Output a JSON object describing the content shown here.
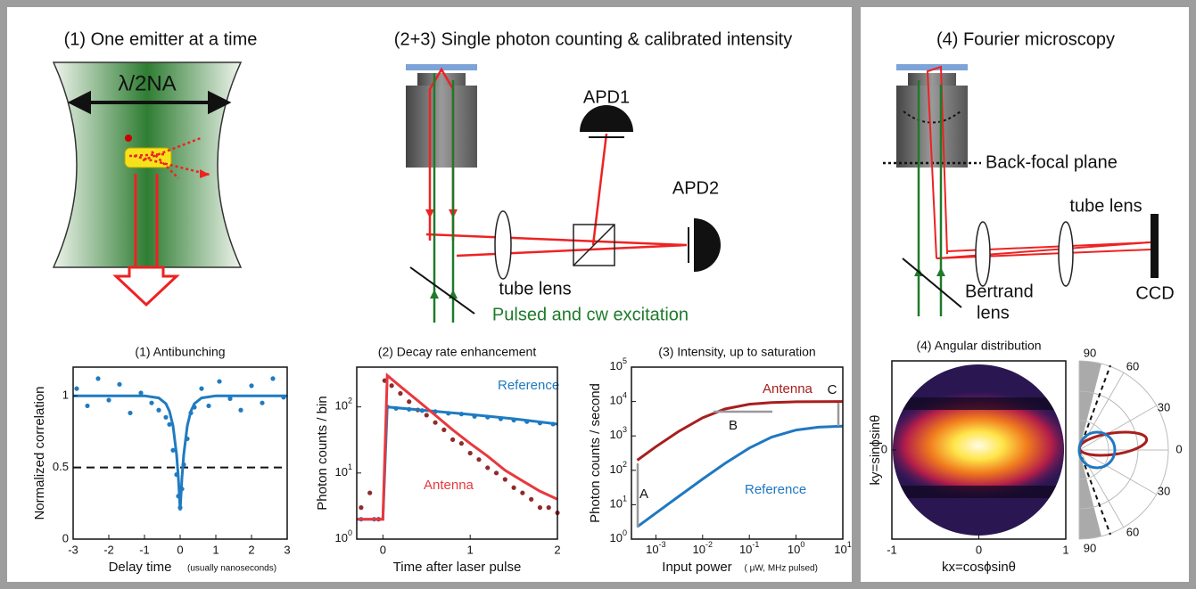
{
  "panels": {
    "emitter": {
      "title": "(1) One emitter at a time",
      "resolution": "λ/2NA"
    },
    "counting": {
      "title": "(2+3) Single photon counting & calibrated intensity",
      "apd1": "APD1",
      "apd2": "APD2",
      "tube_lens": "tube lens",
      "excitation": "Pulsed and cw excitation"
    },
    "fourier": {
      "title": "(4) Fourier microscopy",
      "back_focal": "Back-focal plane",
      "tube_lens": "tube lens",
      "bertrand_lens": [
        "Bertrand",
        "lens"
      ],
      "ccd": "CCD"
    }
  },
  "chart_data": [
    {
      "type": "line",
      "title": "(1) Antibunching",
      "xlabel": "Delay time",
      "xlabel_note": "(usually nanoseconds)",
      "ylabel": "Normalized correlation",
      "xlim": [
        -3,
        3
      ],
      "ylim": [
        0,
        1.2
      ],
      "xticks": [
        -3,
        -2,
        -1,
        0,
        1,
        2,
        3
      ],
      "yticks": [
        0,
        0.5,
        1
      ],
      "hlines": [
        0.5
      ],
      "series": [
        {
          "mode": "markers",
          "color": "#1f7bc1",
          "x": [
            -2.9,
            -2.6,
            -2.3,
            -2.0,
            -1.7,
            -1.4,
            -1.1,
            -0.8,
            -0.6,
            -0.4,
            -0.3,
            -0.2,
            -0.1,
            -0.05,
            0,
            0.05,
            0.1,
            0.2,
            0.3,
            0.4,
            0.6,
            0.8,
            1.1,
            1.4,
            1.7,
            2.0,
            2.3,
            2.6,
            2.9
          ],
          "values": [
            1.05,
            0.93,
            1.12,
            0.97,
            1.08,
            0.88,
            1.02,
            0.95,
            0.9,
            0.85,
            0.8,
            0.62,
            0.45,
            0.3,
            0.22,
            0.35,
            0.52,
            0.7,
            0.88,
            0.92,
            1.05,
            0.93,
            1.1,
            0.98,
            0.9,
            1.07,
            0.95,
            1.12,
            0.99
          ]
        },
        {
          "mode": "line",
          "color": "#1f7bc1",
          "x": [
            -3,
            -2,
            -1,
            -0.6,
            -0.4,
            -0.3,
            -0.2,
            -0.1,
            -0.05,
            0,
            0.05,
            0.1,
            0.2,
            0.3,
            0.4,
            0.6,
            1,
            2,
            3
          ],
          "values": [
            1,
            1,
            1,
            0.985,
            0.945,
            0.892,
            0.79,
            0.589,
            0.427,
            0.2,
            0.427,
            0.589,
            0.79,
            0.892,
            0.945,
            0.985,
            1,
            1,
            1
          ]
        }
      ]
    },
    {
      "type": "line",
      "title": "(2) Decay rate enhancement",
      "xlabel": "Time after laser pulse",
      "ylabel": "Photon counts / bin",
      "log_y": true,
      "xlim": [
        -0.3,
        2
      ],
      "ylim": [
        1,
        400
      ],
      "xticks": [
        0,
        1,
        2
      ],
      "yticks": [
        {
          "value": 1,
          "label": "10^0"
        },
        {
          "value": 10,
          "label": "10^1"
        },
        {
          "value": 100,
          "label": "10^2"
        }
      ],
      "series": [
        {
          "mode": "markers",
          "color": "#8e2b2b",
          "x": [
            -0.25,
            -0.15,
            -0.05,
            0.02,
            0.1,
            0.2,
            0.3,
            0.4,
            0.5,
            0.6,
            0.7,
            0.8,
            0.9,
            1.0,
            1.1,
            1.2,
            1.3,
            1.4,
            1.5,
            1.6,
            1.7,
            1.8,
            1.9,
            2.0
          ],
          "values": [
            3,
            5,
            2,
            250,
            210,
            160,
            120,
            90,
            75,
            58,
            45,
            32,
            28,
            20,
            16,
            12,
            10,
            8,
            6,
            5,
            4,
            3,
            3,
            2.5
          ]
        },
        {
          "mode": "markers",
          "color": "#1f7bc1",
          "x": [
            -0.25,
            -0.1,
            0.05,
            0.15,
            0.3,
            0.45,
            0.6,
            0.75,
            0.9,
            1.05,
            1.2,
            1.35,
            1.5,
            1.65,
            1.8,
            1.95
          ],
          "values": [
            2,
            2,
            100,
            95,
            92,
            88,
            85,
            80,
            78,
            72,
            70,
            66,
            63,
            60,
            57,
            55
          ]
        },
        {
          "mode": "line",
          "name": "Reference",
          "color": "#1f7bc1",
          "x": [
            -0.3,
            0,
            0.05,
            0.5,
            1,
            1.5,
            2
          ],
          "values": [
            2,
            2,
            100,
            88,
            77,
            66,
            55
          ]
        },
        {
          "mode": "line",
          "name": "Antenna",
          "color": "#e8383d",
          "x": [
            -0.3,
            0,
            0.05,
            0.2,
            0.4,
            0.6,
            0.8,
            1.0,
            1.2,
            1.4,
            1.6,
            1.8,
            2.0
          ],
          "values": [
            2,
            2,
            300,
            204,
            124,
            75,
            45,
            28,
            18,
            11,
            7.6,
            5.3,
            4
          ]
        }
      ]
    },
    {
      "type": "line",
      "title": "(3) Intensity, up to saturation",
      "xlabel": "Input power",
      "xlabel_note": "( μW, MHz pulsed)",
      "ylabel": "Photon counts / second",
      "log_x": true,
      "log_y": true,
      "xlim": [
        0.0003,
        10
      ],
      "ylim": [
        1,
        100000
      ],
      "xticks": [
        {
          "value": 0.001,
          "label": "10^-3"
        },
        {
          "value": 0.01,
          "label": "10^-2"
        },
        {
          "value": 0.1,
          "label": "10^-1"
        },
        {
          "value": 1,
          "label": "10^0"
        },
        {
          "value": 10,
          "label": "10^1"
        }
      ],
      "yticks": [
        {
          "value": 1,
          "label": "10^0"
        },
        {
          "value": 10,
          "label": "10^1"
        },
        {
          "value": 100,
          "label": "10^2"
        },
        {
          "value": 1000,
          "label": "10^3"
        },
        {
          "value": 10000,
          "label": "10^4"
        },
        {
          "value": 100000,
          "label": "10^5"
        }
      ],
      "annotations": [
        "A",
        "B",
        "C"
      ],
      "series": [
        {
          "mode": "line",
          "name": "Antenna",
          "color": "#a81e1e",
          "x": [
            0.0004,
            0.001,
            0.003,
            0.01,
            0.03,
            0.1,
            0.3,
            1,
            3,
            10
          ],
          "values": [
            196,
            485,
            1327,
            3378,
            6048,
            8361,
            9387,
            9808,
            9935,
            9980
          ]
        },
        {
          "mode": "line",
          "name": "Reference",
          "color": "#1f78c1",
          "x": [
            0.0004,
            0.001,
            0.003,
            0.01,
            0.03,
            0.1,
            0.3,
            1,
            3,
            10
          ],
          "values": [
            2.28,
            5.7,
            17,
            55.6,
            158,
            444,
            923,
            1481,
            1791,
            1932
          ]
        }
      ]
    },
    {
      "type": "heatmap",
      "title": "(4) Angular distribution",
      "xlabel": "kx=cosϕsinθ",
      "ylabel": "ky=sinϕsinθ",
      "xlim": [
        -1,
        1
      ],
      "ylim": [
        -1,
        1
      ],
      "xticks": [
        -1,
        0,
        1
      ],
      "yticks": [
        0
      ],
      "polar_ticks": [
        90,
        60,
        30,
        0,
        30,
        60,
        90
      ]
    }
  ]
}
